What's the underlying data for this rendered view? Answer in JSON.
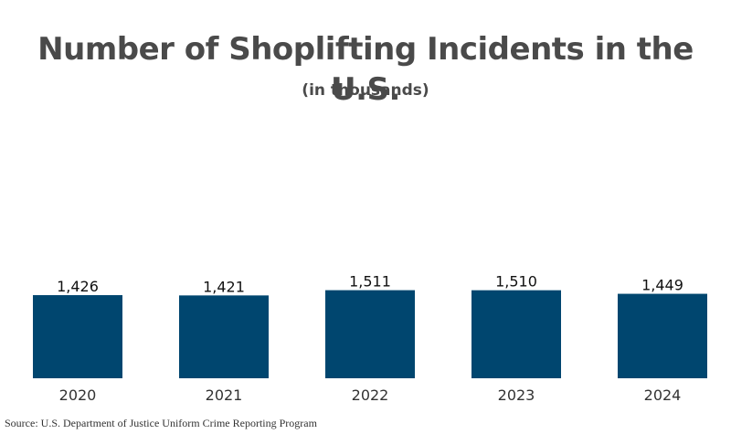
{
  "colors": {
    "bar": "#00466f",
    "title": "#4a4a4a",
    "label": "#111111",
    "tick": "#333333"
  },
  "chart_data": {
    "type": "bar",
    "title": "Number of Shoplifting Incidents in the U.S.",
    "subtitle": "(in thousands)",
    "categories": [
      "2020",
      "2021",
      "2022",
      "2023",
      "2024"
    ],
    "values": [
      1426,
      1421,
      1511,
      1510,
      1449
    ],
    "value_labels": [
      "1,426",
      "1,421",
      "1,511",
      "1,510",
      "1,449"
    ],
    "xlabel": "",
    "ylabel": "",
    "grid": false,
    "legend": "none"
  },
  "source": "Source: U.S. Department of Justice Uniform Crime Reporting Program"
}
